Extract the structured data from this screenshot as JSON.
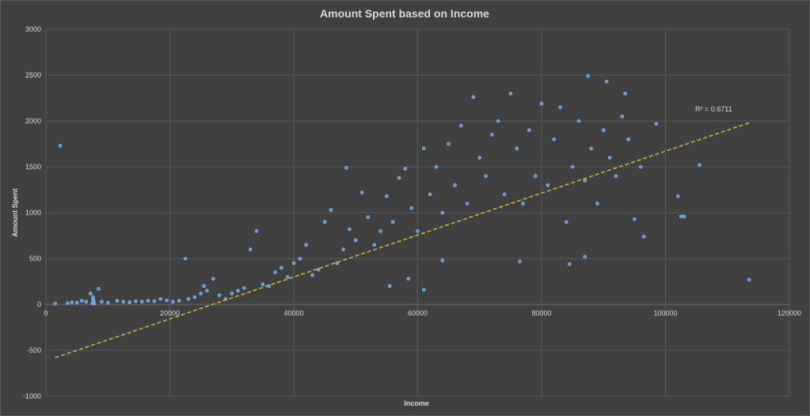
{
  "colors": {
    "background": "#404040",
    "grid": "#595959",
    "text": "#d9d9d9",
    "marker": "#5b9bd5",
    "marker_edge": "#8fc0ff",
    "trendline": "#c9b43c"
  },
  "chart_data": {
    "type": "scatter",
    "title": "Amount Spent based on Income",
    "xlabel": "Income",
    "ylabel": "Amount Spent",
    "xlim": [
      0,
      120000
    ],
    "ylim": [
      -1000,
      3000
    ],
    "xticks": [
      0,
      20000,
      40000,
      60000,
      80000,
      100000,
      120000
    ],
    "yticks": [
      -1000,
      -500,
      0,
      500,
      1000,
      1500,
      2000,
      2500,
      3000
    ],
    "grid": true,
    "legend": "none",
    "trendline": {
      "type": "linear",
      "x_range": [
        1500,
        113500
      ],
      "y_start": -580,
      "y_end": 1980,
      "r_squared_label": "R² = 0.6711"
    },
    "series": [
      {
        "points": [
          [
            2300,
            1730
          ],
          [
            1500,
            10
          ],
          [
            3500,
            15
          ],
          [
            4200,
            25
          ],
          [
            5000,
            20
          ],
          [
            5800,
            40
          ],
          [
            6500,
            30
          ],
          [
            7200,
            120
          ],
          [
            7500,
            15
          ],
          [
            7600,
            60
          ],
          [
            7600,
            80
          ],
          [
            7700,
            40
          ],
          [
            7800,
            10
          ],
          [
            8500,
            170
          ],
          [
            9000,
            30
          ],
          [
            10000,
            20
          ],
          [
            11500,
            40
          ],
          [
            12500,
            30
          ],
          [
            13500,
            25
          ],
          [
            14500,
            35
          ],
          [
            15500,
            30
          ],
          [
            16500,
            40
          ],
          [
            17500,
            35
          ],
          [
            18500,
            60
          ],
          [
            19500,
            45
          ],
          [
            20500,
            30
          ],
          [
            21500,
            40
          ],
          [
            22500,
            500
          ],
          [
            23000,
            60
          ],
          [
            24000,
            80
          ],
          [
            25000,
            120
          ],
          [
            25500,
            200
          ],
          [
            26000,
            150
          ],
          [
            27000,
            280
          ],
          [
            28000,
            100
          ],
          [
            29000,
            60
          ],
          [
            30000,
            120
          ],
          [
            31000,
            150
          ],
          [
            32000,
            180
          ],
          [
            33000,
            600
          ],
          [
            34000,
            800
          ],
          [
            35000,
            220
          ],
          [
            36000,
            200
          ],
          [
            37000,
            350
          ],
          [
            38000,
            400
          ],
          [
            39000,
            300
          ],
          [
            40000,
            450
          ],
          [
            41000,
            500
          ],
          [
            42000,
            650
          ],
          [
            43000,
            320
          ],
          [
            44000,
            380
          ],
          [
            45000,
            900
          ],
          [
            46000,
            1030
          ],
          [
            47000,
            450
          ],
          [
            48000,
            600
          ],
          [
            48500,
            1490
          ],
          [
            49000,
            820
          ],
          [
            50000,
            700
          ],
          [
            51000,
            1220
          ],
          [
            52000,
            950
          ],
          [
            53000,
            650
          ],
          [
            54000,
            800
          ],
          [
            55000,
            1180
          ],
          [
            56000,
            900
          ],
          [
            57000,
            1380
          ],
          [
            58000,
            1480
          ],
          [
            59000,
            1050
          ],
          [
            60000,
            800
          ],
          [
            61000,
            1700
          ],
          [
            62000,
            1200
          ],
          [
            63000,
            1500
          ],
          [
            64000,
            1000
          ],
          [
            65000,
            1750
          ],
          [
            66000,
            1300
          ],
          [
            67000,
            1950
          ],
          [
            68000,
            1100
          ],
          [
            69000,
            2260
          ],
          [
            70000,
            1600
          ],
          [
            71000,
            1400
          ],
          [
            72000,
            1850
          ],
          [
            73000,
            2000
          ],
          [
            74000,
            1200
          ],
          [
            75000,
            2300
          ],
          [
            76000,
            1700
          ],
          [
            77000,
            1100
          ],
          [
            78000,
            1900
          ],
          [
            79000,
            1400
          ],
          [
            80000,
            2190
          ],
          [
            81000,
            1300
          ],
          [
            82000,
            1800
          ],
          [
            83000,
            2150
          ],
          [
            84000,
            900
          ],
          [
            85000,
            1500
          ],
          [
            86000,
            2000
          ],
          [
            87000,
            1350
          ],
          [
            87500,
            2490
          ],
          [
            88000,
            1700
          ],
          [
            89000,
            1100
          ],
          [
            90000,
            1900
          ],
          [
            90500,
            2430
          ],
          [
            91000,
            1600
          ],
          [
            92000,
            1400
          ],
          [
            93000,
            2050
          ],
          [
            93500,
            2300
          ],
          [
            94000,
            1800
          ],
          [
            95000,
            930
          ],
          [
            96000,
            1500
          ],
          [
            96500,
            740
          ],
          [
            98500,
            1970
          ],
          [
            102000,
            1180
          ],
          [
            102500,
            960
          ],
          [
            103000,
            960
          ],
          [
            105500,
            1520
          ],
          [
            113500,
            270
          ],
          [
            84500,
            440
          ],
          [
            87000,
            520
          ],
          [
            76500,
            470
          ],
          [
            64000,
            480
          ],
          [
            61000,
            160
          ],
          [
            58500,
            280
          ],
          [
            55500,
            200
          ]
        ]
      }
    ]
  }
}
